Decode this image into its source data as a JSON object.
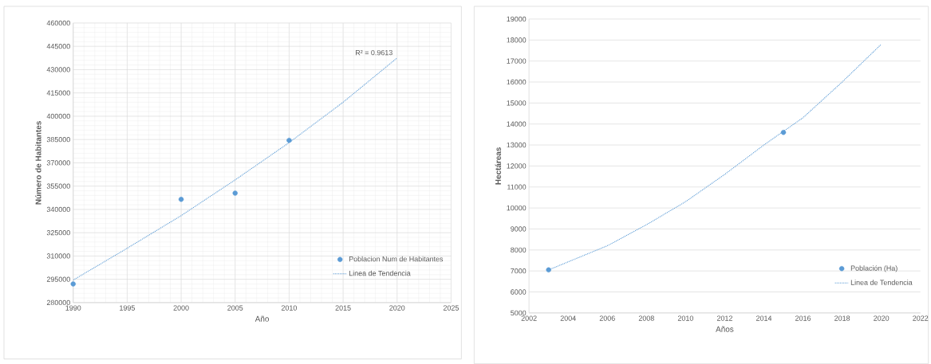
{
  "chart_data": [
    {
      "type": "scatter",
      "xlabel": "Año",
      "ylabel": "Número de Habitantes",
      "xlim": [
        1990,
        2025
      ],
      "xticks": [
        1990,
        1995,
        2000,
        2005,
        2010,
        2015,
        2020,
        2025
      ],
      "ylim": [
        280000,
        460000
      ],
      "yticks": [
        280000,
        295000,
        310000,
        325000,
        340000,
        355000,
        370000,
        385000,
        400000,
        415000,
        430000,
        445000,
        460000
      ],
      "grid": true,
      "legend": "bottom right",
      "annotations": [
        {
          "text": "R² = 0.9613",
          "x": 2020,
          "y": 437500
        }
      ],
      "series": [
        {
          "name": "Poblacion Num de Habitantes",
          "marker": "circle",
          "color": "#5b9bd5",
          "x": [
            1990,
            2000,
            2005,
            2010
          ],
          "values": [
            292000,
            346500,
            350500,
            384500
          ]
        },
        {
          "name": "Linea de Tendencia",
          "type": "line",
          "line_style": "dotted",
          "marker": "none",
          "color": "#5b9bd5",
          "x": [
            1990,
            1995,
            2000,
            2005,
            2010,
            2015,
            2020
          ],
          "values": [
            294500,
            315000,
            336000,
            359000,
            383000,
            409000,
            437500
          ]
        }
      ]
    },
    {
      "type": "scatter",
      "xlabel": "Años",
      "ylabel": "Hectáreas",
      "xlim": [
        2002,
        2022
      ],
      "xticks": [
        2002,
        2004,
        2006,
        2008,
        2010,
        2012,
        2014,
        2016,
        2018,
        2020,
        2022
      ],
      "ylim": [
        5000,
        19000
      ],
      "yticks": [
        5000,
        6000,
        7000,
        8000,
        9000,
        10000,
        11000,
        12000,
        13000,
        14000,
        15000,
        16000,
        17000,
        18000,
        19000
      ],
      "grid": "y",
      "legend": "bottom right",
      "series": [
        {
          "name": "Población (Ha)",
          "marker": "circle",
          "color": "#5b9bd5",
          "x": [
            2003,
            2015
          ],
          "values": [
            7050,
            13600
          ]
        },
        {
          "name": "Linea de Tendencia",
          "type": "line",
          "line_style": "dotted",
          "marker": "none",
          "color": "#5b9bd5",
          "x": [
            2003,
            2006,
            2008,
            2010,
            2012,
            2014,
            2016,
            2018,
            2019,
            2020
          ],
          "values": [
            7050,
            8200,
            9200,
            10300,
            11600,
            13000,
            14300,
            16000,
            16900,
            17800
          ]
        }
      ]
    }
  ]
}
